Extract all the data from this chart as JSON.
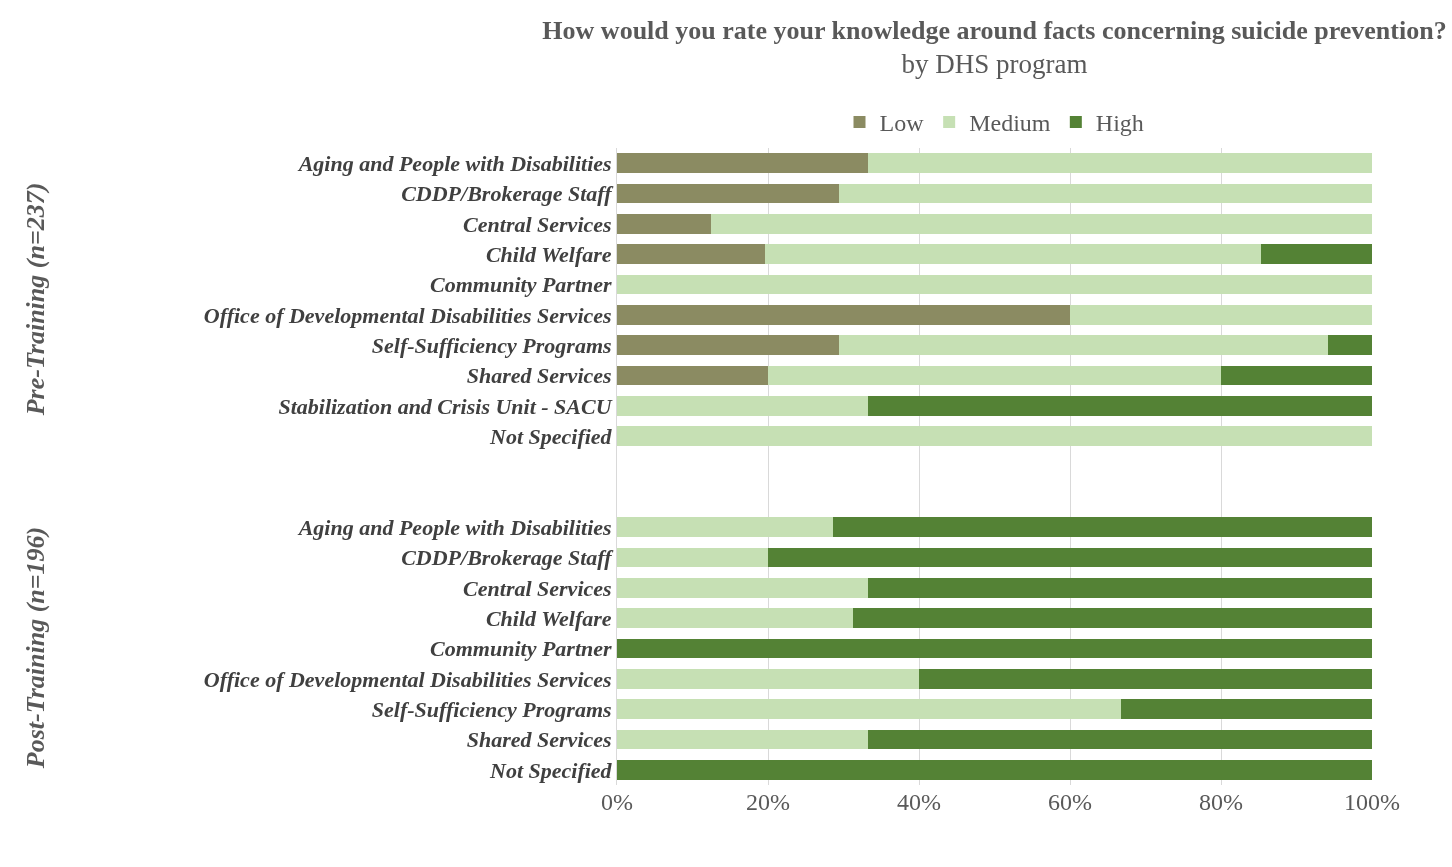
{
  "chart_data": {
    "type": "bar",
    "orientation": "horizontal",
    "stacked": true,
    "title": "How would you rate your knowledge around facts concerning suicide prevention?",
    "subtitle": "by DHS program",
    "categories": [
      "Aging and People with Disabilities",
      "CDDP/Brokerage Staff",
      "Central Services",
      "Child Welfare",
      "Community Partner",
      "Office of Developmental Disabilities Services",
      "Self-Sufficiency Programs",
      "Shared Services",
      "Stabilization and Crisis Unit - SACU",
      "Not Specified",
      null,
      null,
      "Aging and People with Disabilities",
      "CDDP/Brokerage Staff",
      "Central Services",
      "Child Welfare",
      "Community Partner",
      "Office of Developmental Disabilities Services",
      "Self-Sufficiency Programs",
      "Shared Services",
      "Not Specified"
    ],
    "series": [
      {
        "name": "Low",
        "color": "#8b8b62",
        "values": [
          33.3,
          29.4,
          12.5,
          19.6,
          0,
          60,
          29.4,
          20,
          0,
          0,
          null,
          null,
          0,
          0,
          0,
          0,
          0,
          0,
          0,
          0,
          0
        ]
      },
      {
        "name": "Medium",
        "color": "#c6e0b4",
        "values": [
          66.7,
          70.6,
          87.5,
          65.7,
          100,
          40,
          64.8,
          60,
          33.3,
          100,
          null,
          null,
          28.6,
          20,
          33.3,
          31.3,
          0,
          40,
          66.7,
          33.3,
          0
        ]
      },
      {
        "name": "High",
        "color": "#548235",
        "values": [
          0,
          0,
          0,
          14.7,
          0,
          0,
          5.8,
          20,
          66.7,
          0,
          null,
          null,
          71.4,
          80,
          66.7,
          68.7,
          100,
          60,
          33.3,
          66.7,
          100
        ]
      }
    ],
    "annotations": [
      "Pre-Training (n=237)",
      "Post-Training (n=196)"
    ],
    "xlim": [
      0,
      100
    ],
    "xticks": [
      {
        "value": 0,
        "label": "0%"
      },
      {
        "value": 20,
        "label": "20%"
      },
      {
        "value": 40,
        "label": "40%"
      },
      {
        "value": 60,
        "label": "60%"
      },
      {
        "value": 80,
        "label": "80%"
      },
      {
        "value": 100,
        "label": "100%"
      }
    ],
    "grid": "x",
    "legend": "top"
  }
}
